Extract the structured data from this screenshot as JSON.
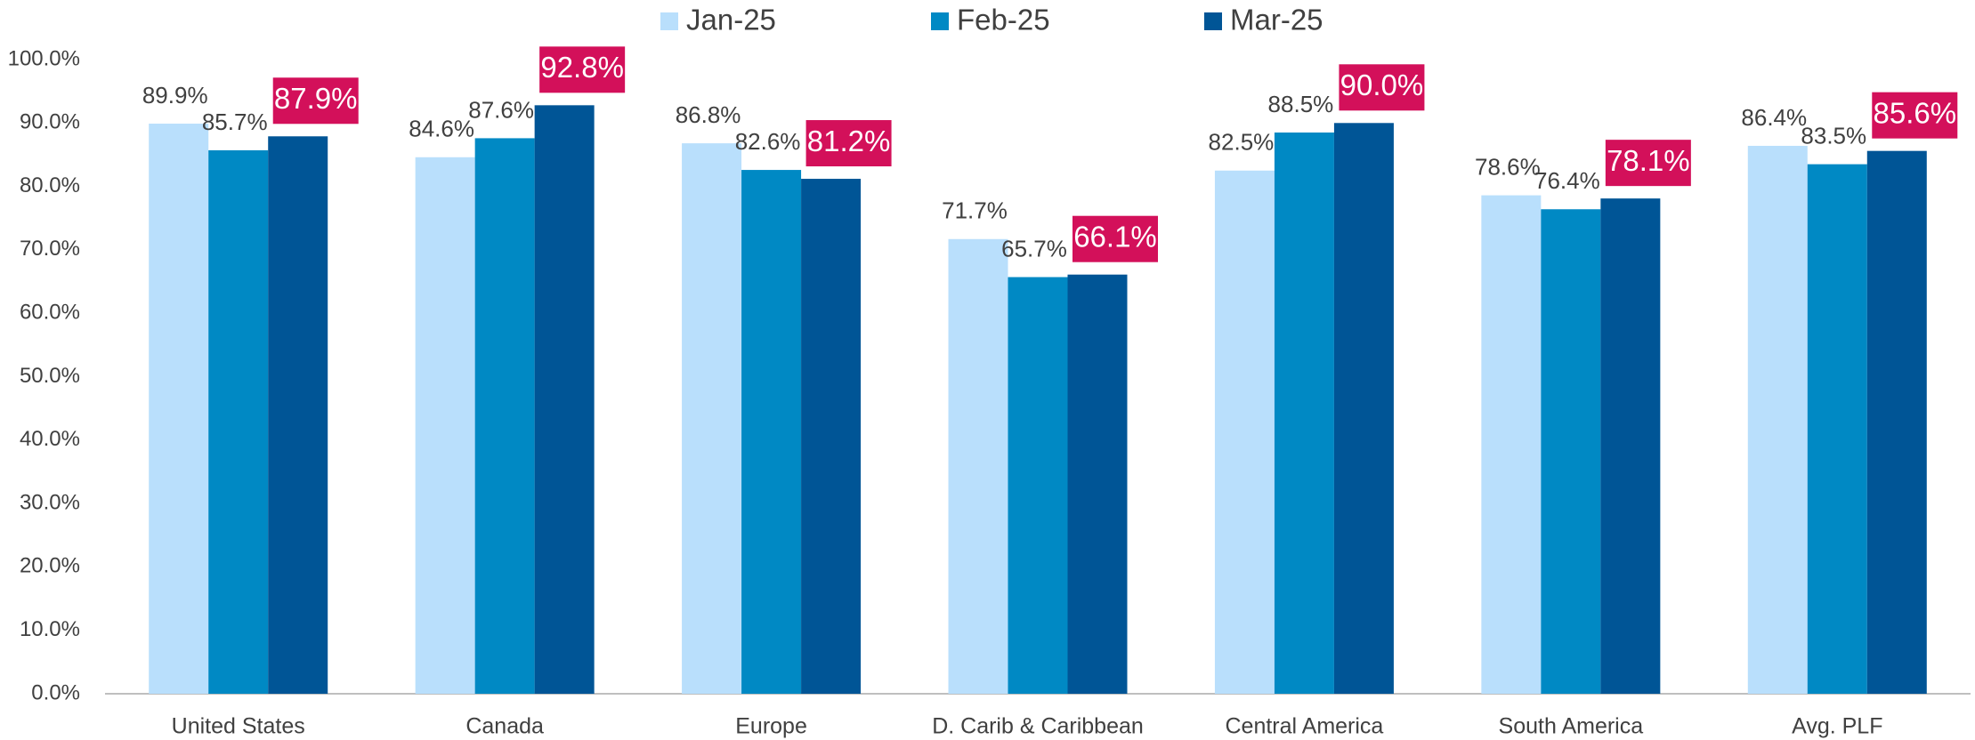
{
  "chart_data": {
    "type": "bar",
    "categories": [
      "United States",
      "Canada",
      "Europe",
      "D. Carib & Caribbean",
      "Central America",
      "South America",
      "Avg. PLF"
    ],
    "series": [
      {
        "name": "Jan-25",
        "color": "#b9dffc",
        "values": [
          89.9,
          84.6,
          86.8,
          71.7,
          82.5,
          78.6,
          86.4
        ],
        "value_labels": [
          "89.9%",
          "84.6%",
          "86.8%",
          "71.7%",
          "82.5%",
          "78.6%",
          "86.4%"
        ]
      },
      {
        "name": "Feb-25",
        "color": "#0089c4",
        "values": [
          85.7,
          87.6,
          82.6,
          65.7,
          88.5,
          76.4,
          83.5
        ],
        "value_labels": [
          "85.7%",
          "87.6%",
          "82.6%",
          "65.7%",
          "88.5%",
          "76.4%",
          "83.5%"
        ]
      },
      {
        "name": "Mar-25",
        "color": "#005596",
        "values": [
          87.9,
          92.8,
          81.2,
          66.1,
          90.0,
          78.1,
          85.6
        ],
        "value_labels": [
          "87.9%",
          "92.8%",
          "81.2%",
          "66.1%",
          "90.0%",
          "78.1%",
          "85.6%"
        ]
      }
    ],
    "highlight_label_color": "#d3105a",
    "ylim": [
      0,
      100
    ],
    "yticks": [
      {
        "value": 0,
        "label": "0.0%"
      },
      {
        "value": 10,
        "label": "10.0%"
      },
      {
        "value": 20,
        "label": "20.0%"
      },
      {
        "value": 30,
        "label": "30.0%"
      },
      {
        "value": 40,
        "label": "40.0%"
      },
      {
        "value": 50,
        "label": "50.0%"
      },
      {
        "value": 60,
        "label": "60.0%"
      },
      {
        "value": 70,
        "label": "70.0%"
      },
      {
        "value": 80,
        "label": "80.0%"
      },
      {
        "value": 90,
        "label": "90.0%"
      },
      {
        "value": 100,
        "label": "100.0%"
      }
    ],
    "grid": false,
    "legend": "top"
  }
}
